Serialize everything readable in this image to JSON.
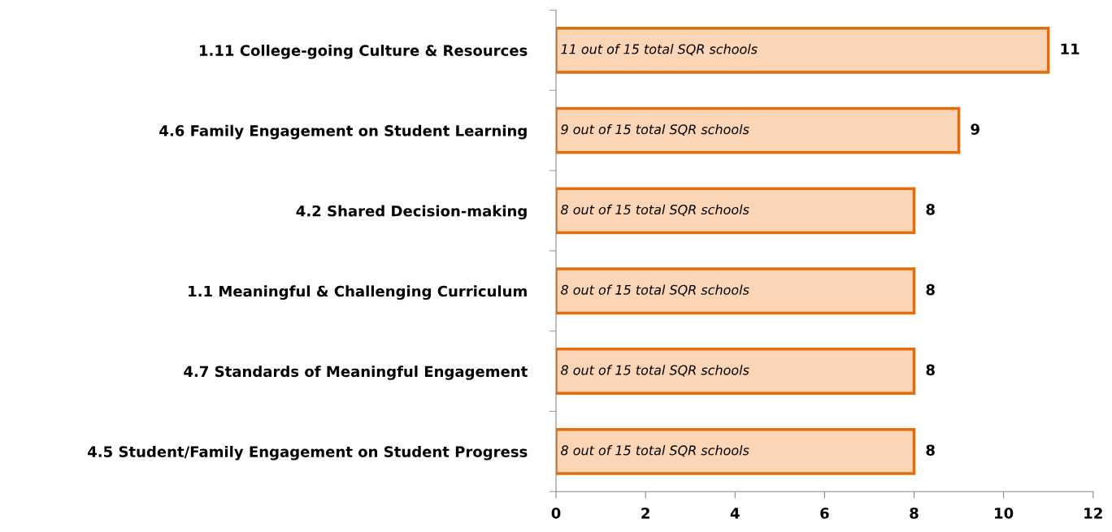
{
  "chart_data": {
    "type": "bar",
    "orientation": "horizontal",
    "categories": [
      "1.11 College-going Culture & Resources",
      "4.6 Family Engagement on Student Learning",
      "4.2 Shared Decision-making",
      "1.1 Meaningful & Challenging Curriculum",
      "4.7 Standards of Meaningful Engagement",
      "4.5 Student/Family Engagement on Student Progress"
    ],
    "values": [
      11,
      9,
      8,
      8,
      8,
      8
    ],
    "color": "#fbd5b5",
    "xlim": [
      0,
      12
    ],
    "xticks": [
      0,
      2,
      4,
      6,
      8,
      10,
      12
    ],
    "data_labels": true,
    "grid": false,
    "legend": false,
    "annotations": [
      "11 out of 15 total SQR schools",
      "9 out of 15 total SQR schools",
      "8 out of 15 total SQR schools",
      "8 out of 15 total SQR schools",
      "8 out of 15 total SQR schools",
      "8 out of 15 total SQR schools"
    ]
  }
}
